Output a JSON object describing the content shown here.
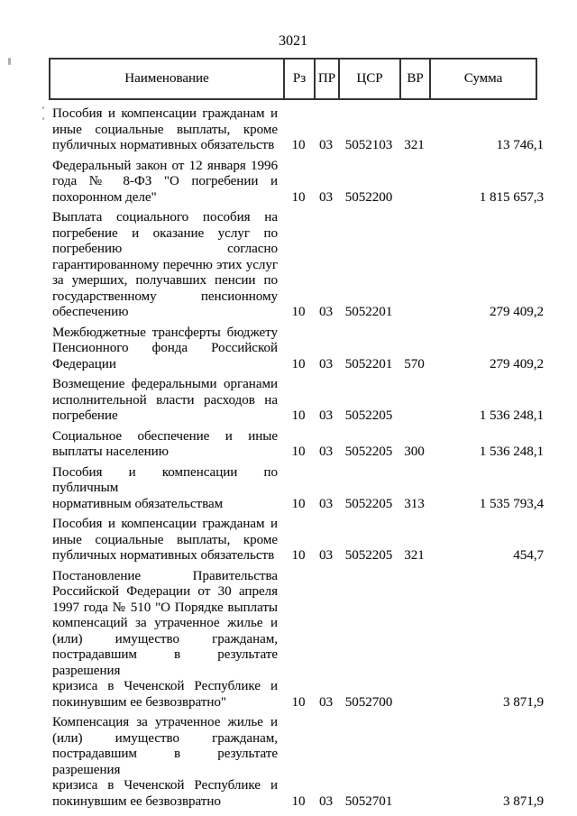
{
  "page_number": "3021",
  "colors": {
    "ink": "#141414",
    "table_border": "#343434"
  },
  "table": {
    "headers": [
      "Наименование",
      "Рз",
      "ПР",
      "ЦСР",
      "ВР",
      "Сумма"
    ],
    "rows": [
      {
        "name_lines": [
          "Пособия и компенсации гражданам и",
          "иные социальные выплаты, кроме",
          "публичных нормативных обязательств"
        ],
        "rz": "10",
        "pr": "03",
        "csr": "5052103",
        "vr": "321",
        "sum": "13 746,1"
      },
      {
        "name_lines": [
          "Федеральный закон от 12 января 1996",
          "года № 8-ФЗ \"О погребении и",
          "похоронном деле\""
        ],
        "rz": "10",
        "pr": "03",
        "csr": "5052200",
        "vr": "",
        "sum": "1 815 657,3"
      },
      {
        "name_lines": [
          "Выплата социального пособия на",
          "погребение и оказание услуг по",
          "погребению согласно",
          "гарантированному перечню этих услуг",
          "за умерших, получавших пенсии по",
          "государственному пенсионному",
          "обеспечению"
        ],
        "rz": "10",
        "pr": "03",
        "csr": "5052201",
        "vr": "",
        "sum": "279 409,2"
      },
      {
        "name_lines": [
          "Межбюджетные трансферты бюджету",
          "Пенсионного фонда Российской",
          "Федерации"
        ],
        "rz": "10",
        "pr": "03",
        "csr": "5052201",
        "vr": "570",
        "sum": "279 409,2"
      },
      {
        "name_lines": [
          "Возмещение федеральными органами",
          "исполнительной власти расходов на",
          "погребение"
        ],
        "rz": "10",
        "pr": "03",
        "csr": "5052205",
        "vr": "",
        "sum": "1 536 248,1"
      },
      {
        "name_lines": [
          "Социальное обеспечение и иные",
          "выплаты населению"
        ],
        "rz": "10",
        "pr": "03",
        "csr": "5052205",
        "vr": "300",
        "sum": "1 536 248,1"
      },
      {
        "name_lines": [
          "Пособия и компенсации по публичным",
          "нормативным обязательствам"
        ],
        "rz": "10",
        "pr": "03",
        "csr": "5052205",
        "vr": "313",
        "sum": "1 535 793,4"
      },
      {
        "name_lines": [
          "Пособия и компенсации гражданам и",
          "иные социальные выплаты, кроме",
          "публичных нормативных обязательств"
        ],
        "rz": "10",
        "pr": "03",
        "csr": "5052205",
        "vr": "321",
        "sum": "454,7"
      },
      {
        "name_lines": [
          "Постановление Правительства",
          "Российской Федерации от 30 апреля",
          "1997 года № 510 \"О Порядке выплаты",
          "компенсаций за утраченное жилье и",
          "(или) имущество гражданам,",
          "пострадавшим в результате разрешения",
          "кризиса в Чеченской Республике и",
          "покинувшим ее безвозвратно\""
        ],
        "rz": "10",
        "pr": "03",
        "csr": "5052700",
        "vr": "",
        "sum": "3 871,9"
      },
      {
        "name_lines": [
          "Компенсация за утраченное жилье и",
          "(или) имущество гражданам,",
          "пострадавшим в результате разрешения",
          "кризиса в Чеченской Республике и",
          "покинувшим ее безвозвратно"
        ],
        "rz": "10",
        "pr": "03",
        "csr": "5052701",
        "vr": "",
        "sum": "3 871,9"
      }
    ]
  }
}
